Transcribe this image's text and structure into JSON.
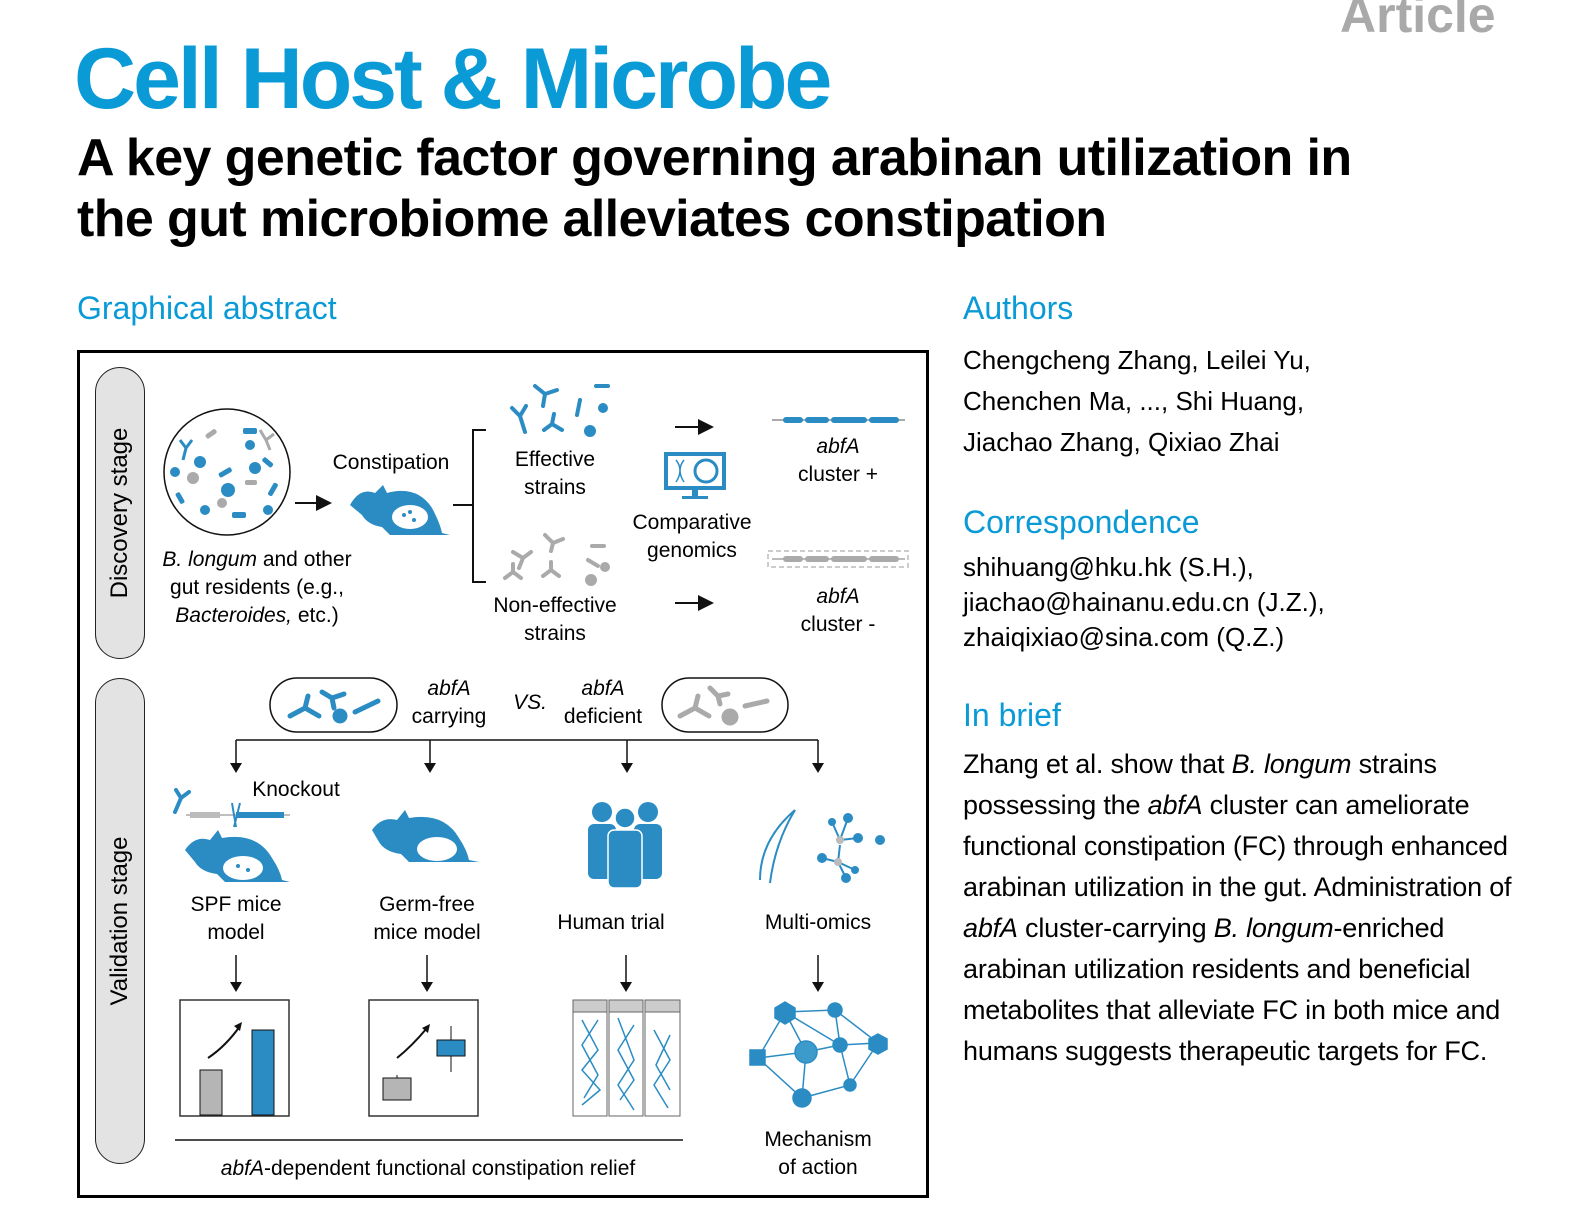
{
  "header": {
    "article_type": "Article",
    "journal": "Cell Host & Microbe",
    "title_lines": [
      "A key genetic factor governing arabinan utilization in",
      "the gut microbiome alleviates constipation"
    ]
  },
  "graphical_abstract": {
    "heading": "Graphical abstract",
    "discovery": {
      "stage_label": "Discovery stage",
      "community_caption": {
        "l1_italic": "B. longum",
        "l1_rest": " and other",
        "l2": "gut residents (e.g.,",
        "l3_italic": "Bacteroides,",
        "l3_rest": " etc.)"
      },
      "constipation": "Constipation",
      "effective": [
        "Effective",
        "strains"
      ],
      "non_effective": [
        "Non-effective",
        "strains"
      ],
      "comparative": [
        "Comparative",
        "genomics"
      ],
      "cluster_plus": {
        "gene": "abfA",
        "label": "cluster +"
      },
      "cluster_minus": {
        "gene": "abfA",
        "label": "cluster -"
      }
    },
    "validation": {
      "stage_label": "Validation stage",
      "carrying": {
        "gene": "abfA",
        "label": "carrying"
      },
      "vs": "VS.",
      "deficient": {
        "gene": "abfA",
        "label": "deficient"
      },
      "knockout": "Knockout",
      "spf": [
        "SPF mice",
        "model"
      ],
      "germ_free": [
        "Germ-free",
        "mice model"
      ],
      "human_trial": "Human trial",
      "multi_omics": "Multi-omics",
      "mechanism": [
        "Mechanism",
        "of action"
      ],
      "relief": {
        "gene": "abfA",
        "rest": "-dependent functional constipation relief"
      }
    },
    "colors": {
      "accent_blue": "#2b8cc4",
      "gray": "#aaaaaa"
    }
  },
  "authors": {
    "heading": "Authors",
    "lines": [
      "Chengcheng Zhang, Leilei Yu,",
      "Chenchen Ma, ..., Shi Huang,",
      "Jiachao Zhang, Qixiao Zhai"
    ]
  },
  "correspondence": {
    "heading": "Correspondence",
    "lines": [
      "shihuang@hku.hk (S.H.),",
      "jiachao@hainanu.edu.cn (J.Z.),",
      "zhaiqixiao@sina.com (Q.Z.)"
    ]
  },
  "in_brief": {
    "heading": "In brief",
    "s1": "Zhang et al. show that ",
    "i1": "B. longum",
    "s2": " strains possessing the ",
    "i2": "abfA",
    "s3": " cluster can ameliorate functional constipation (FC) through enhanced arabinan utilization in the gut. Administration of ",
    "i3": "abfA",
    "s4": " cluster-carrying ",
    "i4": "B. longum",
    "s5": "-enriched arabinan utilization residents and beneficial metabolites that alleviate FC in both mice and humans suggests therapeutic targets for FC."
  },
  "theme": {
    "journal_blue": "#0a9bd7",
    "article_gray": "#a9a9a9"
  }
}
